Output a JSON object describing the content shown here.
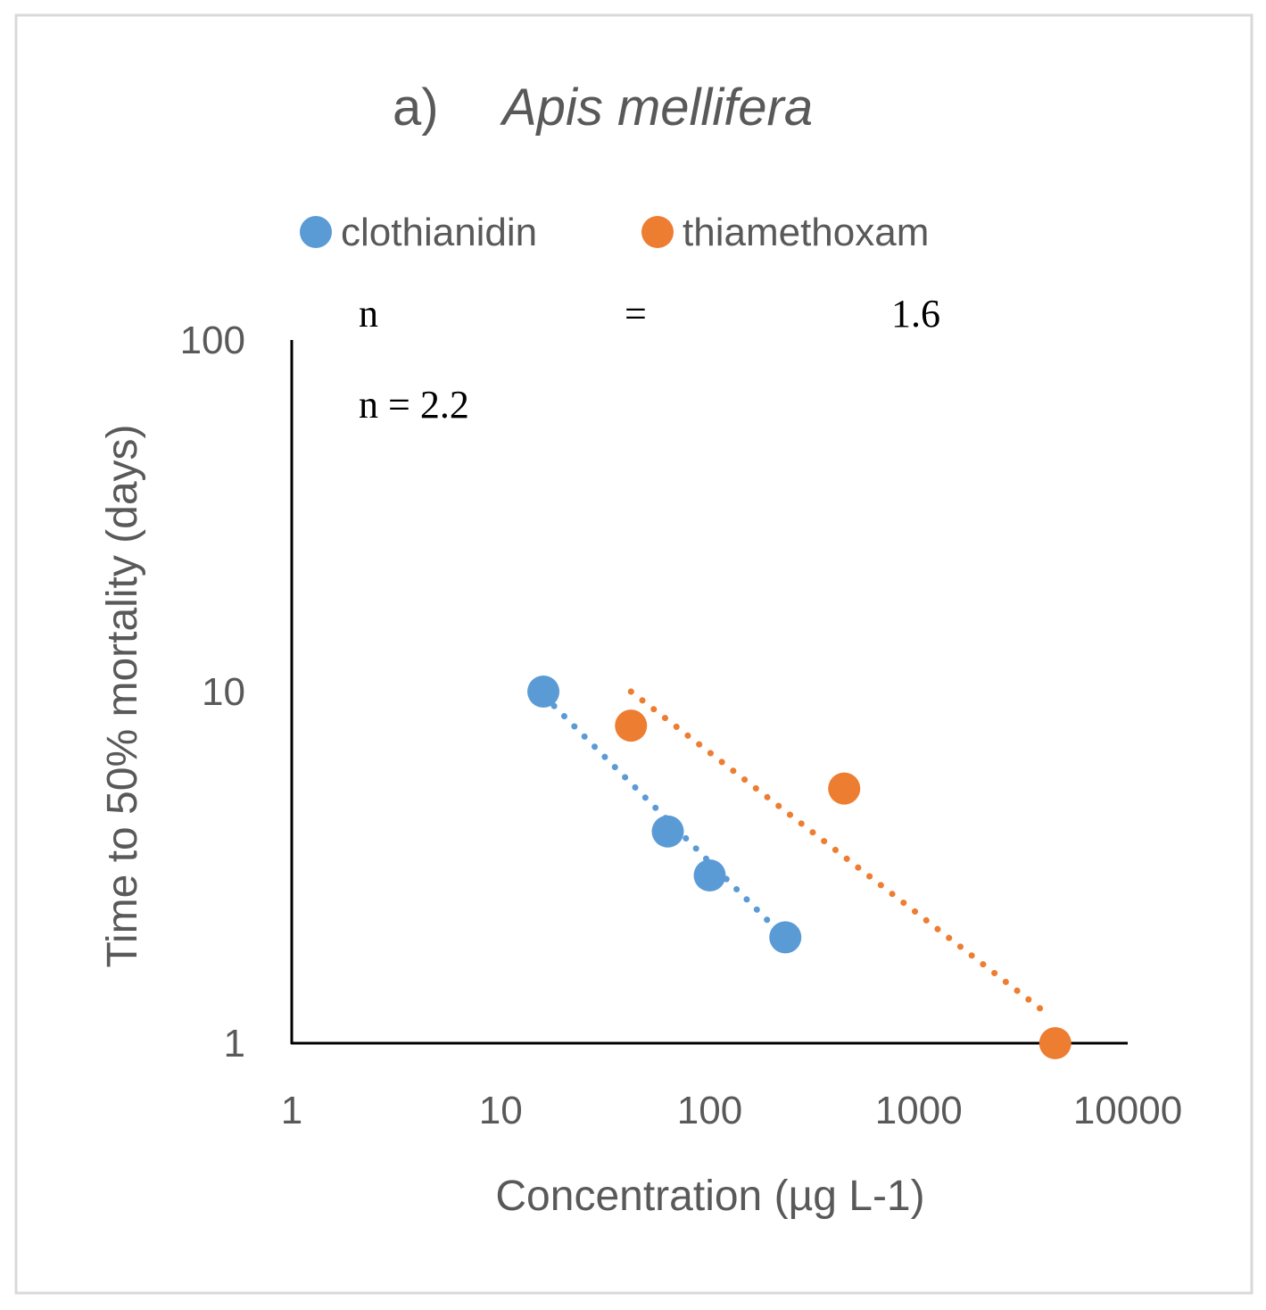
{
  "chart_data": {
    "type": "scatter",
    "title_prefix": "a)",
    "title_species": "Apis mellifera",
    "xlabel": "Concentration (µg L-1)",
    "ylabel": "Time to 50% mortality (days)",
    "x_scale": "log",
    "y_scale": "log",
    "xlim": [
      1,
      10000
    ],
    "ylim": [
      1,
      100
    ],
    "x_ticks": [
      "1",
      "10",
      "100",
      "1000",
      "10000"
    ],
    "y_ticks": [
      "1",
      "10",
      "100"
    ],
    "legend_position": "top",
    "series": [
      {
        "name": "clothianidin",
        "color": "#5B9BD5",
        "points": [
          {
            "x": 16,
            "y": 10
          },
          {
            "x": 63,
            "y": 4
          },
          {
            "x": 100,
            "y": 3
          },
          {
            "x": 230,
            "y": 2
          }
        ],
        "trendline": {
          "x": [
            18,
            210
          ],
          "y": [
            9.1,
            2.1
          ]
        }
      },
      {
        "name": "thiamethoxam",
        "color": "#ED7D31",
        "points": [
          {
            "x": 42,
            "y": 8
          },
          {
            "x": 440,
            "y": 5.3
          },
          {
            "x": 4500,
            "y": 1
          }
        ],
        "trendline": {
          "x": [
            42,
            4200
          ],
          "y": [
            10,
            1.2
          ]
        }
      }
    ],
    "annotations": {
      "n_label": "n",
      "n_equals": "=",
      "n_value": "1.6",
      "n_second": "n = 2.2"
    }
  }
}
